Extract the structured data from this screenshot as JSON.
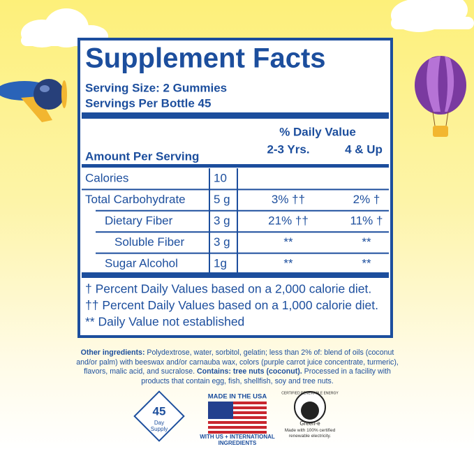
{
  "panel": {
    "title": "Supplement Facts",
    "serving_size": "Serving Size: 2 Gummies",
    "servings_per_container": "Servings Per Bottle 45",
    "daily_value_heading": "% Daily Value",
    "amount_heading": "Amount Per Serving",
    "column_heads": [
      "2-3 Yrs.",
      "4 & Up"
    ],
    "rows": [
      {
        "name": "Calories",
        "amount": "10",
        "indent": 0
      },
      {
        "name": "Total Carbohydrate",
        "amount": "5 g",
        "dv": [
          "3% ††",
          "2% †"
        ],
        "indent": 0
      },
      {
        "name": "Dietary Fiber",
        "amount": "3 g",
        "dv": [
          "21% ††",
          "11% †"
        ],
        "indent": 1
      },
      {
        "name": "Soluble Fiber",
        "amount": "3 g",
        "dv": [
          "**",
          "**"
        ],
        "indent": 2
      },
      {
        "name": "Sugar Alcohol",
        "amount": "1g",
        "dv": [
          "**",
          "**"
        ],
        "indent": 1
      }
    ],
    "footnotes": [
      "† Percent Daily Values based on a 2,000 calorie diet.",
      "†† Percent Daily Values based on a 1,000 calorie diet.",
      "** Daily Value not established"
    ]
  },
  "ingredients": {
    "label": "Other ingredients:",
    "text": " Polydextrose, water, sorbitol, gelatin; less than 2% of: blend of oils (coconut and/or palm) with beeswax and/or carnauba wax, colors (purple carrot juice concentrate, turmeric), flavors, malic acid, and sucralose. ",
    "contains_label": "Contains: tree nuts (coconut).",
    "contains_text": " Processed in a facility with products that contain egg, fish, shellfish, soy and tree nuts."
  },
  "badges": {
    "supply_number": "45",
    "supply_text": "Day Supply",
    "usa_top": "MADE IN THE USA",
    "usa_bottom": "WITH US + INTERNATIONAL INGREDIENTS",
    "green_arc": "CERTIFIED RENEWABLE ENERGY",
    "green_name": "Green-e",
    "green_note": "Made with 100% certified renewable electricity."
  }
}
